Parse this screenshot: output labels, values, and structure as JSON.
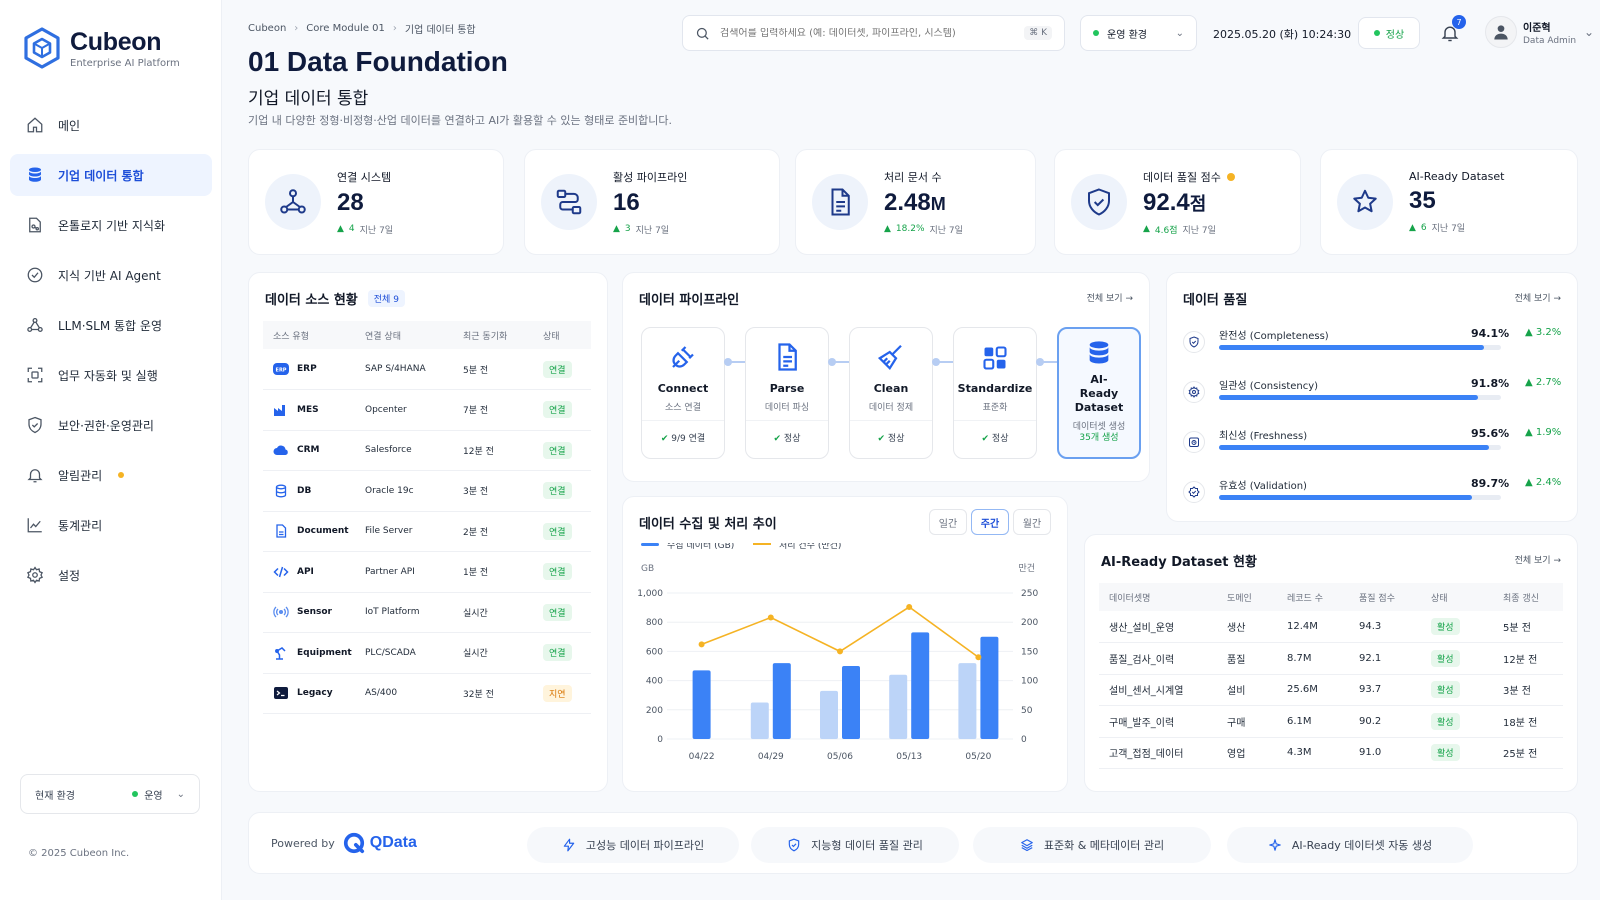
{
  "brand": {
    "name": "Cubeon",
    "tagline": "Enterprise AI Platform",
    "accent": "#2563eb"
  },
  "sidebar": {
    "items": [
      {
        "label": "메인",
        "icon": "home-icon",
        "active": false
      },
      {
        "label": "기업 데이터 통합",
        "icon": "database-icon",
        "active": true
      },
      {
        "label": "온톨로지 기반 지식화",
        "icon": "ontology-icon",
        "active": false
      },
      {
        "label": "지식 기반 AI Agent",
        "icon": "agent-icon",
        "active": false
      },
      {
        "label": "LLM·SLM 통합 운영",
        "icon": "llm-icon",
        "active": false
      },
      {
        "label": "업무 자동화 및 실행",
        "icon": "automation-icon",
        "active": false
      },
      {
        "label": "보안·권한·운영관리",
        "icon": "security-icon",
        "active": false
      },
      {
        "label": "알림관리",
        "icon": "bell-icon",
        "active": false,
        "dot": true
      },
      {
        "label": "통계관리",
        "icon": "stats-icon",
        "active": false
      },
      {
        "label": "설정",
        "icon": "gear-icon",
        "active": false
      }
    ],
    "env_label": "현재 환경",
    "env_value": "운영",
    "copyright": "© 2025 Cubeon Inc."
  },
  "header": {
    "breadcrumb": [
      "Cubeon",
      "Core Module 01",
      "기업 데이터 통합"
    ],
    "title": "01 Data Foundation",
    "subtitle": "기업 데이터 통합",
    "description": "기업 내 다양한 정형·비정형·산업 데이터를 연결하고 AI가 활용할 수 있는 형태로 준비합니다.",
    "search_placeholder": "검색어를 입력하세요 (예: 데이터셋, 파이프라인, 시스템)",
    "search_shortcut": "⌘ K",
    "env_select": "운영 환경",
    "datetime": "2025.05.20 (화) 10:24:30",
    "status": "정상",
    "notif_count": "7",
    "user_name": "이준혁",
    "user_role": "Data Admin"
  },
  "kpis": [
    {
      "label": "연결 시스템",
      "value": "28",
      "unit": "",
      "delta": "4",
      "period": "지난 7일",
      "icon": "network-icon",
      "warn": false
    },
    {
      "label": "활성 파이프라인",
      "value": "16",
      "unit": "",
      "delta": "3",
      "period": "지난 7일",
      "icon": "pipeline-icon",
      "warn": false
    },
    {
      "label": "처리 문서 수",
      "value": "2.48",
      "unit": "M",
      "delta": "18.2%",
      "period": "지난 7일",
      "icon": "document-icon",
      "warn": false
    },
    {
      "label": "데이터 품질 점수",
      "value": "92.4",
      "unit": "점",
      "delta": "4.6점",
      "period": "지난 7일",
      "icon": "shield-check-icon",
      "warn": true
    },
    {
      "label": "AI-Ready Dataset",
      "value": "35",
      "unit": "",
      "delta": "6",
      "period": "지난 7일",
      "icon": "star-icon",
      "warn": false
    }
  ],
  "sources": {
    "title": "데이터 소스 현황",
    "count": "전체 9",
    "columns": [
      "소스 유형",
      "연결 상태",
      "최근 동기화",
      "상태"
    ],
    "rows": [
      {
        "type": "ERP",
        "system": "SAP S/4HANA",
        "sync": "5분 전",
        "status": "연결",
        "ok": true
      },
      {
        "type": "MES",
        "system": "Opcenter",
        "sync": "7분 전",
        "status": "연결",
        "ok": true
      },
      {
        "type": "CRM",
        "system": "Salesforce",
        "sync": "12분 전",
        "status": "연결",
        "ok": true
      },
      {
        "type": "DB",
        "system": "Oracle 19c",
        "sync": "3분 전",
        "status": "연결",
        "ok": true
      },
      {
        "type": "Document",
        "system": "File Server",
        "sync": "2분 전",
        "status": "연결",
        "ok": true
      },
      {
        "type": "API",
        "system": "Partner API",
        "sync": "1분 전",
        "status": "연결",
        "ok": true
      },
      {
        "type": "Sensor",
        "system": "IoT Platform",
        "sync": "실시간",
        "status": "연결",
        "ok": true
      },
      {
        "type": "Equipment",
        "system": "PLC/SCADA",
        "sync": "실시간",
        "status": "연결",
        "ok": true
      },
      {
        "type": "Legacy",
        "system": "AS/400",
        "sync": "32분 전",
        "status": "지연",
        "ok": false
      }
    ]
  },
  "pipeline": {
    "title": "데이터 파이프라인",
    "link": "전체 보기 →",
    "steps": [
      {
        "name": "Connect",
        "desc": "소스 연결",
        "status": "9/9 연결",
        "icon": "plug-icon"
      },
      {
        "name": "Parse",
        "desc": "데이터 파싱",
        "status": "정상",
        "icon": "file-text-icon"
      },
      {
        "name": "Clean",
        "desc": "데이터 정제",
        "status": "정상",
        "icon": "broom-icon"
      },
      {
        "name": "Standardize",
        "desc": "표준화",
        "status": "정상",
        "icon": "grid-icon"
      },
      {
        "name": "AI-Ready Dataset",
        "desc": "데이터셋 생성",
        "status": "35개 생성",
        "icon": "stack-icon"
      }
    ]
  },
  "quality": {
    "title": "데이터 품질",
    "link": "전체 보기 →",
    "items": [
      {
        "label": "완전성 (Completeness)",
        "value": "94.1%",
        "score": 0.941,
        "delta": "3.2%",
        "icon": "shield-icon"
      },
      {
        "label": "일관성 (Consistency)",
        "value": "91.8%",
        "score": 0.918,
        "delta": "2.7%",
        "icon": "cog-check-icon"
      },
      {
        "label": "최신성 (Freshness)",
        "value": "95.6%",
        "score": 0.956,
        "delta": "1.9%",
        "icon": "clock-icon"
      },
      {
        "label": "유효성 (Validation)",
        "value": "89.7%",
        "score": 0.897,
        "delta": "2.4%",
        "icon": "badge-check-icon"
      }
    ]
  },
  "trend": {
    "title": "데이터 수집 및 처리 추이",
    "tabs": [
      "일간",
      "주간",
      "월간"
    ],
    "active_tab": 1,
    "legend": [
      "수집 데이터 (GB)",
      "처리 건수 (만건)"
    ],
    "y_left_unit": "GB",
    "y_right_unit": "만건",
    "y_left_ticks": [
      "0",
      "200",
      "400",
      "600",
      "800",
      "1,000"
    ],
    "y_right_ticks": [
      "0",
      "50",
      "100",
      "150",
      "200",
      "250"
    ]
  },
  "chart_data": {
    "type": "bar",
    "categories": [
      "04/22",
      "04/29",
      "05/06",
      "05/13",
      "05/20"
    ],
    "series": [
      {
        "name": "수집 데이터 (GB)",
        "values": [
          null,
          250,
          330,
          440,
          520
        ]
      },
      {
        "name": "수집 데이터 (GB)",
        "values": [
          470,
          520,
          500,
          730,
          700
        ]
      },
      {
        "name": "처리 건수 (만건)",
        "values": [
          162,
          208,
          150,
          226,
          140
        ]
      }
    ],
    "xlabel": "",
    "ylabel": "GB",
    "ylim": [
      0,
      1000
    ],
    "y2label": "만건",
    "y2lim": [
      0,
      250
    ],
    "colors": [
      "#bcd4f8",
      "#3b82f6",
      "#f5b324"
    ],
    "legend_position": "top-left",
    "grid": true
  },
  "datasets": {
    "title": "AI-Ready Dataset 현황",
    "link": "전체 보기 →",
    "columns": [
      "데이터셋명",
      "도메인",
      "레코드 수",
      "품질 점수",
      "상태",
      "최종 갱신"
    ],
    "rows": [
      [
        "생산_설비_운영",
        "생산",
        "12.4M",
        "94.3",
        "활성",
        "5분 전"
      ],
      [
        "품질_검사_이력",
        "품질",
        "8.7M",
        "92.1",
        "활성",
        "12분 전"
      ],
      [
        "설비_센서_시계열",
        "설비",
        "25.6M",
        "93.7",
        "활성",
        "3분 전"
      ],
      [
        "구매_발주_이력",
        "구매",
        "6.1M",
        "90.2",
        "활성",
        "18분 전"
      ],
      [
        "고객_접점_데이터",
        "영업",
        "4.3M",
        "91.0",
        "활성",
        "25분 전"
      ]
    ]
  },
  "footer": {
    "powered_by": "Powered by",
    "brand": "QData",
    "features": [
      {
        "label": "고성능 데이터 파이프라인",
        "icon": "bolt-icon"
      },
      {
        "label": "지능형 데이터 품질 관리",
        "icon": "shield-icon"
      },
      {
        "label": "표준화 & 메타데이터 관리",
        "icon": "layers-icon"
      },
      {
        "label": "AI-Ready 데이터셋 자동 생성",
        "icon": "sparkle-icon"
      }
    ]
  }
}
